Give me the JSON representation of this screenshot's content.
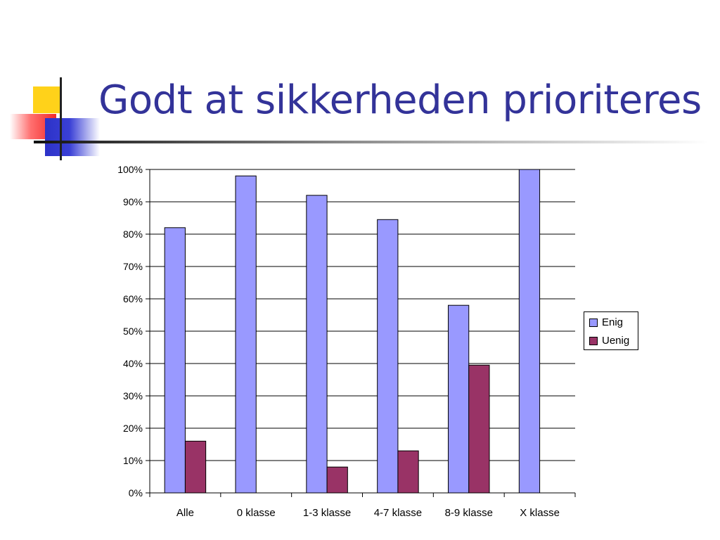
{
  "slide": {
    "title": "Godt at sikkerheden prioriteres"
  },
  "colors": {
    "title": "#333399",
    "deco_yellow": "#ffd21a",
    "deco_red": "#f22a2a",
    "deco_blue": "#2c32c8"
  },
  "chart_data": {
    "type": "bar",
    "categories": [
      "Alle",
      "0 klasse",
      "1-3 klasse",
      "4-7 klasse",
      "8-9 klasse",
      "X klasse"
    ],
    "series": [
      {
        "name": "Enig",
        "color": "#9999ff",
        "values": [
          82,
          98,
          92,
          84.5,
          58,
          100
        ]
      },
      {
        "name": "Uenig",
        "color": "#993366",
        "values": [
          16,
          0,
          8,
          13,
          39.5,
          0
        ]
      }
    ],
    "ylim": [
      0,
      100
    ],
    "y_ticks": [
      "0%",
      "10%",
      "20%",
      "30%",
      "40%",
      "50%",
      "60%",
      "70%",
      "80%",
      "90%",
      "100%"
    ],
    "grid": true,
    "legend_position": "right",
    "xlabel": "",
    "ylabel": ""
  }
}
